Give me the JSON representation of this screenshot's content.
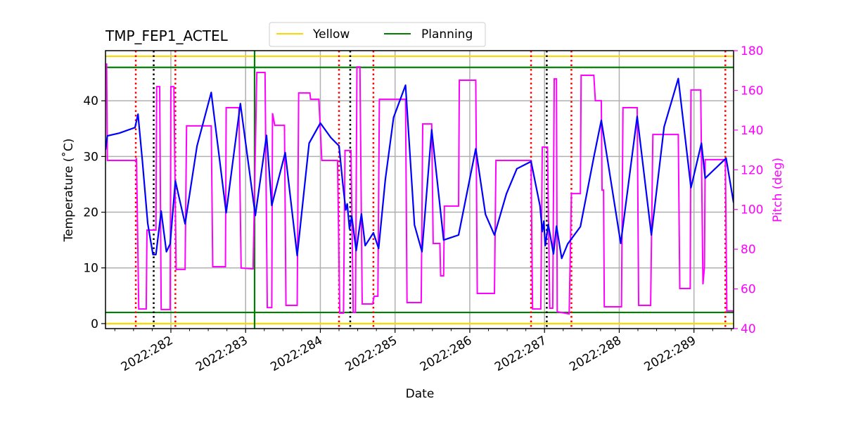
{
  "chart_data": {
    "type": "line",
    "title": "TMP_FEP1_ACTEL",
    "xlabel": "Date",
    "ylabel": "Temperature ($^\\circ$C)",
    "ylabel_display": "Temperature (˚C)",
    "y2label": "Pitch (deg)",
    "xlim": [
      281.125,
      289.53
    ],
    "ylim": [
      -0.9,
      49
    ],
    "y2lim": [
      40,
      180
    ],
    "grid": true,
    "legend_placement": "top-center-outside",
    "x_ticks": [
      282,
      283,
      284,
      285,
      286,
      287,
      288,
      289
    ],
    "x_tick_labels": [
      "2022:282",
      "2022:283",
      "2022:284",
      "2022:285",
      "2022:286",
      "2022:287",
      "2022:288",
      "2022:289"
    ],
    "y_ticks": [
      0,
      10,
      20,
      30,
      40
    ],
    "y_tick_labels": [
      "0",
      "10",
      "20",
      "30",
      "40"
    ],
    "y2_ticks": [
      40,
      60,
      80,
      100,
      120,
      140,
      160,
      180
    ],
    "y2_tick_labels": [
      "40",
      "60",
      "80",
      "100",
      "120",
      "140",
      "160",
      "180"
    ],
    "legend": [
      {
        "label": "Yellow",
        "color": "#ffd700"
      },
      {
        "label": "Planning",
        "color": "#008000"
      }
    ],
    "limit_lines": [
      {
        "name": "Yellow",
        "values": [
          48,
          0
        ],
        "color": "#ffd700"
      },
      {
        "name": "Planning",
        "values": [
          46,
          2
        ],
        "color": "#008000"
      }
    ],
    "vlines_green": [
      283.12
    ],
    "vlines_red_dotted": [
      281.53,
      282.06,
      284.25,
      284.71,
      286.82,
      287.36,
      289.42
    ],
    "vlines_black_dotted": [
      281.77,
      284.4,
      287.03
    ],
    "temperature_series": {
      "color": "#0000ff",
      "axis": "left",
      "x": [
        281.125,
        281.15,
        281.31,
        281.52,
        281.56,
        281.62,
        281.69,
        281.76,
        281.8,
        281.87,
        281.94,
        281.99,
        282.06,
        282.19,
        282.35,
        282.54,
        282.74,
        282.93,
        283.13,
        283.28,
        283.35,
        283.53,
        283.69,
        283.85,
        284.0,
        284.14,
        284.25,
        284.3,
        284.34,
        284.36,
        284.39,
        284.42,
        284.48,
        284.55,
        284.6,
        284.71,
        284.78,
        284.87,
        284.98,
        285.14,
        285.26,
        285.36,
        285.49,
        285.65,
        285.85,
        286.08,
        286.21,
        286.33,
        286.49,
        286.63,
        286.82,
        286.94,
        286.97,
        286.99,
        287.01,
        287.05,
        287.12,
        287.16,
        287.23,
        287.31,
        287.48,
        287.66,
        287.76,
        288.02,
        288.24,
        288.43,
        288.6,
        288.79,
        288.96,
        289.1,
        289.15,
        289.43,
        289.53
      ],
      "y": [
        31.2,
        33.7,
        34.2,
        35.2,
        37.6,
        29.0,
        18.0,
        12.4,
        12.4,
        20.2,
        12.9,
        14.3,
        25.6,
        17.9,
        31.9,
        41.5,
        19.9,
        39.5,
        19.4,
        33.8,
        21.2,
        30.7,
        12.2,
        32.4,
        36.0,
        33.4,
        31.9,
        25.2,
        20.4,
        21.5,
        17.0,
        19.3,
        13.1,
        19.7,
        14.0,
        16.3,
        13.5,
        25.9,
        37.0,
        42.8,
        17.7,
        12.9,
        34.8,
        15.0,
        15.9,
        31.4,
        19.6,
        15.9,
        23.3,
        27.8,
        29.1,
        21.1,
        16.5,
        18.4,
        14.0,
        17.8,
        12.5,
        17.5,
        11.7,
        14.3,
        17.4,
        29.9,
        36.5,
        14.4,
        37.2,
        15.9,
        35.3,
        44.0,
        24.4,
        32.4,
        26.1,
        29.7,
        21.7
      ]
    },
    "pitch_series": {
      "color": "#ff00ff",
      "axis": "right",
      "x": [
        281.14,
        281.15,
        281.53,
        281.54,
        281.57,
        281.67,
        281.68,
        281.8,
        281.81,
        281.85,
        281.87,
        281.99,
        282.0,
        282.04,
        282.07,
        282.19,
        282.21,
        282.54,
        282.56,
        282.73,
        282.74,
        282.91,
        282.94,
        283.1,
        283.15,
        283.26,
        283.29,
        283.35,
        283.36,
        283.39,
        283.52,
        283.54,
        283.69,
        283.71,
        283.86,
        283.87,
        283.98,
        284.02,
        284.23,
        284.26,
        284.31,
        284.33,
        284.41,
        284.44,
        284.47,
        284.49,
        284.53,
        284.56,
        284.7,
        284.72,
        284.77,
        284.79,
        285.14,
        285.16,
        285.35,
        285.37,
        285.49,
        285.51,
        285.6,
        285.61,
        285.65,
        285.66,
        285.85,
        285.86,
        286.08,
        286.1,
        286.33,
        286.35,
        286.82,
        286.84,
        286.95,
        286.97,
        287.04,
        287.07,
        287.11,
        287.13,
        287.16,
        287.17,
        287.33,
        287.36,
        287.48,
        287.49,
        287.66,
        287.68,
        287.76,
        287.77,
        287.79,
        287.8,
        288.03,
        288.05,
        288.24,
        288.26,
        288.42,
        288.45,
        288.79,
        288.81,
        288.95,
        288.96,
        289.09,
        289.12,
        289.14,
        289.15,
        289.42,
        289.44,
        289.53
      ],
      "y": [
        173.6,
        124.7,
        124.7,
        125.8,
        49.9,
        49.9,
        89.6,
        89.6,
        161.9,
        161.9,
        49.6,
        49.6,
        161.9,
        161.9,
        69.8,
        69.8,
        142.1,
        142.1,
        71.2,
        71.2,
        151.3,
        151.3,
        70.5,
        70.1,
        169.0,
        169.0,
        50.6,
        50.6,
        148.5,
        142.4,
        142.4,
        51.7,
        51.7,
        158.7,
        158.7,
        155.5,
        155.5,
        124.7,
        124.7,
        47.8,
        47.8,
        129.7,
        129.7,
        48.2,
        48.2,
        171.8,
        171.8,
        52.4,
        52.4,
        56.3,
        56.3,
        155.5,
        155.5,
        53.1,
        53.1,
        143.1,
        143.1,
        82.9,
        82.9,
        66.6,
        66.6,
        101.7,
        101.7,
        165.1,
        165.1,
        57.7,
        57.7,
        124.7,
        124.7,
        49.9,
        49.9,
        131.4,
        131.4,
        50.3,
        50.3,
        165.8,
        165.8,
        48.5,
        47.4,
        108.0,
        108.0,
        167.6,
        167.6,
        154.8,
        154.8,
        109.8,
        109.8,
        51.0,
        51.0,
        151.3,
        151.3,
        51.7,
        51.7,
        137.8,
        137.8,
        60.2,
        60.2,
        160.2,
        160.2,
        62.3,
        70.8,
        125.1,
        125.1,
        48.9,
        48.9
      ]
    }
  }
}
